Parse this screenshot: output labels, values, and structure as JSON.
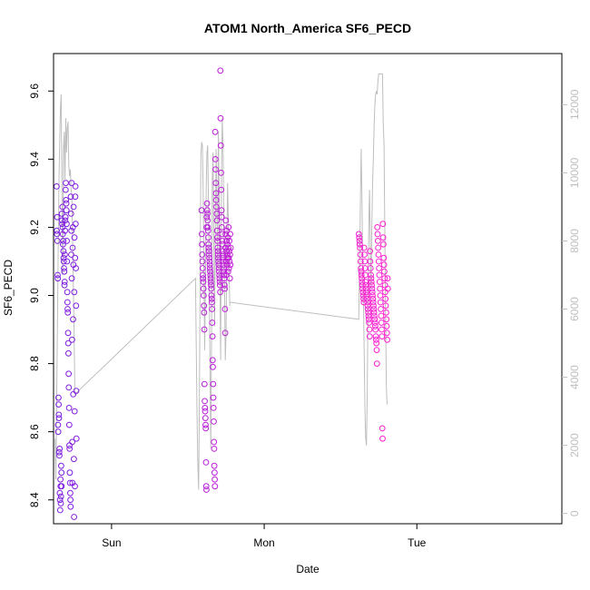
{
  "chart_data": {
    "type": "scatter",
    "title": "ATOM1 North_America SF6_PECD",
    "xlabel": "Date",
    "ylabel": "SF6_PECD",
    "x_ticks": [
      "Sun",
      "Mon",
      "Tue"
    ],
    "x_tick_days": [
      0,
      1,
      2
    ],
    "xlim_days": [
      -0.38,
      2.95
    ],
    "ylim": [
      8.33,
      9.71
    ],
    "y_ticks": [
      8.4,
      8.6,
      8.8,
      9.0,
      9.2,
      9.4,
      9.6
    ],
    "y2lim": [
      -300,
      13500
    ],
    "y2_ticks": [
      0,
      2000,
      4000,
      6000,
      8000,
      10000,
      12000
    ],
    "grid": false,
    "colors": {
      "point_start": "#7b1fe0",
      "point_end": "#ff1fce",
      "line": "#bebebe",
      "axis": "#000000",
      "axis_right": "#bebebe"
    },
    "series": [
      {
        "kind": "points",
        "axis": "left",
        "clusters": [
          {
            "x_start_days": -0.36,
            "x_end_days": -0.23,
            "y": [
              9.32,
              9.19,
              9.18,
              9.23,
              9.16,
              9.06,
              9.05,
              8.62,
              8.6,
              8.7,
              8.68,
              8.65,
              8.64,
              8.54,
              8.53,
              8.55,
              8.42,
              8.4,
              8.37,
              8.46,
              8.44,
              8.39,
              8.41,
              8.5,
              8.48,
              8.44,
              9.24,
              9.22,
              9.21,
              9.26,
              9.2,
              9.18,
              9.15,
              9.16,
              9.13,
              9.11,
              9.1,
              9.08,
              9.07,
              9.03,
              9.04,
              9.12,
              9.19,
              9.22,
              9.23,
              9.31,
              9.33,
              9.28,
              9.27,
              9.25,
              9.21,
              9.16,
              9.1,
              9.01,
              8.98,
              8.96,
              8.95,
              8.89,
              8.86,
              8.83,
              8.77,
              8.73,
              8.67,
              8.62,
              8.56,
              8.55,
              8.48,
              8.45,
              8.42,
              8.4,
              8.38,
              9.29,
              9.24,
              9.12,
              9.19,
              9.33,
              9.05,
              8.87,
              8.57,
              8.45,
              9.14,
              9.2,
              8.93,
              8.71,
              9.09,
              9.26,
              8.52,
              8.35,
              9.01,
              9.17,
              8.66,
              8.44,
              9.11,
              9.29,
              9.32,
              9.21,
              9.08,
              8.97,
              8.72,
              8.58
            ]
          },
          {
            "x_start_days": 0.59,
            "x_end_days": 0.78,
            "y": [
              9.25,
              9.18,
              9.15,
              9.12,
              9.1,
              9.08,
              9.06,
              9.05,
              9.04,
              9.02,
              9.0,
              8.97,
              8.95,
              8.9,
              8.74,
              8.69,
              8.67,
              8.66,
              8.64,
              8.62,
              8.61,
              8.51,
              8.44,
              8.43,
              9.2,
              9.23,
              9.27,
              9.25,
              9.24,
              9.22,
              9.2,
              9.19,
              9.17,
              9.15,
              9.14,
              9.13,
              9.12,
              9.11,
              9.1,
              9.09,
              9.08,
              9.07,
              9.06,
              9.05,
              9.04,
              9.03,
              9.02,
              9.0,
              8.99,
              8.98,
              8.96,
              8.92,
              8.88,
              8.81,
              8.79,
              8.74,
              8.7,
              8.67,
              8.63,
              8.57,
              8.55,
              8.5,
              8.48,
              8.46,
              8.44,
              9.48,
              9.4,
              9.37,
              9.33,
              9.3,
              9.28,
              9.26,
              9.24,
              9.22,
              9.19,
              9.17,
              9.16,
              9.14,
              9.13,
              9.12,
              9.11,
              9.1,
              9.09,
              9.08,
              9.07,
              9.06,
              9.05,
              9.04,
              9.03,
              9.01,
              9.66,
              9.52,
              9.44,
              9.36,
              9.31,
              9.25,
              9.23,
              9.2,
              9.18,
              9.16,
              9.15,
              9.13,
              9.12,
              9.11,
              9.1,
              9.09,
              9.08,
              9.07,
              9.06,
              9.05,
              9.03,
              9.02,
              8.96,
              8.89,
              9.14,
              9.18,
              9.22,
              9.1,
              9.06,
              9.13,
              9.16,
              9.19,
              9.09,
              9.12,
              9.15,
              9.11,
              9.17,
              9.07,
              9.14,
              9.2,
              9.11,
              9.08,
              9.13,
              9.16,
              9.1,
              9.05,
              9.12,
              9.18,
              9.09,
              9.14
            ]
          },
          {
            "x_start_days": 1.62,
            "x_end_days": 1.81,
            "y": [
              9.18,
              9.17,
              9.16,
              9.15,
              9.14,
              9.12,
              9.1,
              9.08,
              9.07,
              9.06,
              9.05,
              9.04,
              9.03,
              9.02,
              9.01,
              9.0,
              8.99,
              8.98,
              9.14,
              9.12,
              9.1,
              9.08,
              9.06,
              9.04,
              9.03,
              9.02,
              9.01,
              9.0,
              8.99,
              8.98,
              8.97,
              8.96,
              8.95,
              8.94,
              8.93,
              8.92,
              8.9,
              8.88,
              9.13,
              9.1,
              9.08,
              9.06,
              9.05,
              9.04,
              9.03,
              9.02,
              9.01,
              9.0,
              8.99,
              8.98,
              8.97,
              8.96,
              8.95,
              8.94,
              8.93,
              8.92,
              8.91,
              8.9,
              8.88,
              8.87,
              8.86,
              8.84,
              8.8,
              9.2,
              9.18,
              9.16,
              9.14,
              9.12,
              9.1,
              9.08,
              9.06,
              9.04,
              9.02,
              9.0,
              8.98,
              8.96,
              8.94,
              8.92,
              8.9,
              8.88,
              8.61,
              8.58,
              9.21,
              9.17,
              9.15,
              9.11,
              9.09,
              9.07,
              9.05,
              9.03,
              9.01,
              8.99,
              8.97,
              8.95,
              8.93,
              8.91,
              8.89,
              8.87,
              9.05,
              9.02
            ]
          }
        ]
      },
      {
        "kind": "line",
        "axis": "right",
        "points": [
          [
            -0.37,
            2200
          ],
          [
            -0.365,
            1000
          ],
          [
            -0.36,
            3200
          ],
          [
            -0.355,
            5200
          ],
          [
            -0.35,
            7500
          ],
          [
            -0.345,
            9600
          ],
          [
            -0.34,
            10900
          ],
          [
            -0.335,
            11900
          ],
          [
            -0.33,
            12300
          ],
          [
            -0.325,
            9500
          ],
          [
            -0.32,
            7000
          ],
          [
            -0.315,
            10700
          ],
          [
            -0.31,
            11200
          ],
          [
            -0.305,
            9800
          ],
          [
            -0.3,
            11600
          ],
          [
            -0.295,
            10600
          ],
          [
            -0.29,
            11300
          ],
          [
            -0.285,
            11500
          ],
          [
            -0.28,
            10200
          ],
          [
            -0.275,
            9900
          ],
          [
            -0.27,
            10100
          ],
          [
            -0.265,
            9500
          ],
          [
            -0.26,
            9300
          ],
          [
            -0.255,
            8000
          ],
          [
            -0.25,
            6500
          ],
          [
            -0.245,
            5200
          ],
          [
            -0.24,
            3500
          ],
          [
            0.55,
            6900
          ],
          [
            0.55,
            6800
          ],
          [
            0.56,
            2800
          ],
          [
            0.565,
            1500
          ],
          [
            0.57,
            700
          ],
          [
            0.575,
            3000
          ],
          [
            0.58,
            6500
          ],
          [
            0.585,
            10500
          ],
          [
            0.59,
            10900
          ],
          [
            0.595,
            10800
          ],
          [
            0.6,
            9500
          ],
          [
            0.605,
            7200
          ],
          [
            0.61,
            4800
          ],
          [
            0.615,
            6800
          ],
          [
            0.62,
            9600
          ],
          [
            0.625,
            10600
          ],
          [
            0.63,
            10800
          ],
          [
            0.635,
            9000
          ],
          [
            0.64,
            6800
          ],
          [
            0.645,
            4200
          ],
          [
            0.65,
            1900
          ],
          [
            0.655,
            5300
          ],
          [
            0.66,
            9800
          ],
          [
            0.665,
            10600
          ],
          [
            0.67,
            7800
          ],
          [
            0.675,
            5500
          ],
          [
            0.68,
            8500
          ],
          [
            0.685,
            10700
          ],
          [
            0.69,
            9100
          ],
          [
            0.695,
            7200
          ],
          [
            0.7,
            11200
          ],
          [
            0.705,
            9300
          ],
          [
            0.71,
            6800
          ],
          [
            0.715,
            4500
          ],
          [
            0.72,
            9800
          ],
          [
            0.725,
            11600
          ],
          [
            0.73,
            10800
          ],
          [
            0.735,
            8600
          ],
          [
            0.74,
            6900
          ],
          [
            0.745,
            4500
          ],
          [
            0.75,
            5200
          ],
          [
            0.755,
            7800
          ],
          [
            0.76,
            9700
          ],
          [
            0.765,
            8600
          ],
          [
            0.77,
            6900
          ],
          [
            0.775,
            6100
          ],
          [
            0.775,
            6200
          ],
          [
            1.62,
            5700
          ],
          [
            1.62,
            5900
          ],
          [
            1.625,
            7200
          ],
          [
            1.63,
            9000
          ],
          [
            1.635,
            10700
          ],
          [
            1.64,
            9400
          ],
          [
            1.645,
            7600
          ],
          [
            1.65,
            6200
          ],
          [
            1.655,
            4800
          ],
          [
            1.66,
            3000
          ],
          [
            1.665,
            2200
          ],
          [
            1.67,
            2000
          ],
          [
            1.675,
            3500
          ],
          [
            1.68,
            6200
          ],
          [
            1.685,
            8500
          ],
          [
            1.69,
            9500
          ],
          [
            1.695,
            8000
          ],
          [
            1.7,
            6600
          ],
          [
            1.705,
            8400
          ],
          [
            1.71,
            9700
          ],
          [
            1.715,
            10400
          ],
          [
            1.72,
            11400
          ],
          [
            1.725,
            12000
          ],
          [
            1.73,
            12300
          ],
          [
            1.735,
            12400
          ],
          [
            1.74,
            12300
          ],
          [
            1.745,
            12700
          ],
          [
            1.75,
            12900
          ],
          [
            1.755,
            12900
          ],
          [
            1.76,
            12900
          ],
          [
            1.765,
            12900
          ],
          [
            1.77,
            12900
          ],
          [
            1.775,
            12900
          ],
          [
            1.78,
            11500
          ],
          [
            1.785,
            10800
          ],
          [
            1.79,
            8400
          ],
          [
            1.795,
            5800
          ],
          [
            1.8,
            3800
          ],
          [
            1.805,
            3200
          ]
        ]
      }
    ]
  }
}
